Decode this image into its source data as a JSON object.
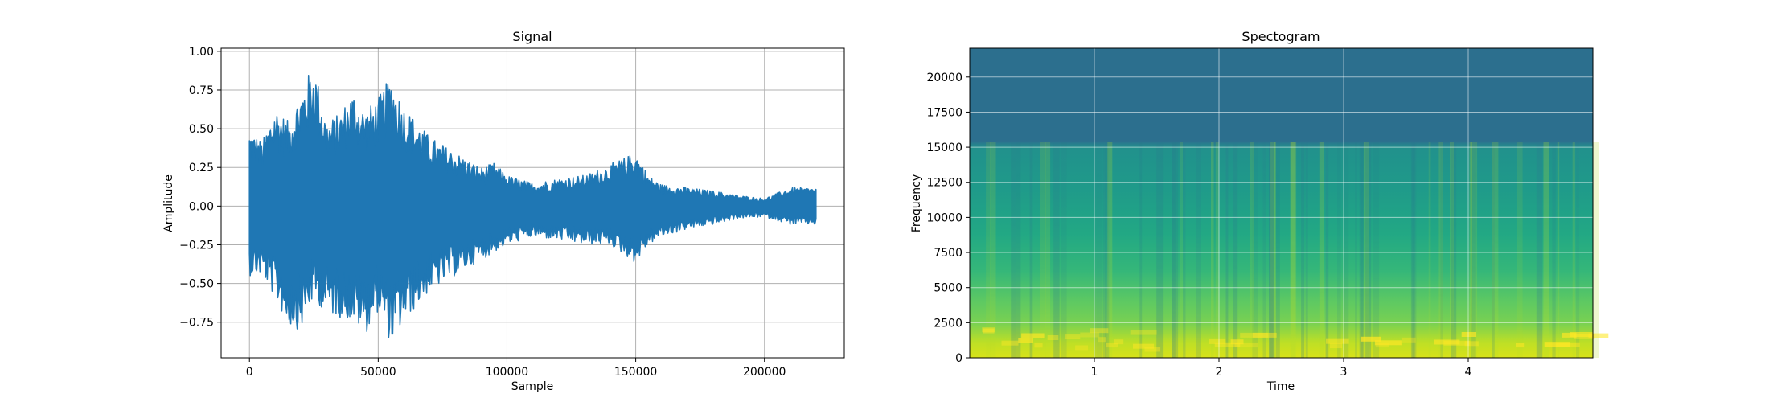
{
  "chart_data": [
    {
      "type": "line",
      "title": "Signal",
      "xlabel": "Sample",
      "ylabel": "Amplitude",
      "xlim": [
        -11000,
        231000
      ],
      "ylim": [
        -0.98,
        1.02
      ],
      "xticks": [
        0,
        50000,
        100000,
        150000,
        200000
      ],
      "xtick_labels": [
        "0",
        "50000",
        "100000",
        "150000",
        "200000"
      ],
      "yticks": [
        -0.75,
        -0.5,
        -0.25,
        0.0,
        0.25,
        0.5,
        0.75,
        1.0
      ],
      "ytick_labels": [
        "−0.75",
        "−0.50",
        "−0.25",
        "0.00",
        "0.25",
        "0.50",
        "0.75",
        "1.00"
      ],
      "grid": true,
      "line_color": "#1f77b4",
      "envelope": {
        "x": [
          0,
          5000,
          10000,
          15000,
          20000,
          25000,
          30000,
          35000,
          40000,
          45000,
          50000,
          55000,
          60000,
          65000,
          70000,
          75000,
          80000,
          85000,
          90000,
          95000,
          100000,
          110000,
          120000,
          130000,
          140000,
          150000,
          155000,
          160000,
          170000,
          180000,
          190000,
          200000,
          210000,
          220000
        ],
        "upper": [
          0.5,
          0.42,
          0.65,
          0.55,
          0.75,
          0.93,
          0.55,
          0.6,
          0.75,
          0.62,
          0.7,
          0.85,
          0.65,
          0.55,
          0.45,
          0.4,
          0.35,
          0.3,
          0.25,
          0.28,
          0.2,
          0.15,
          0.18,
          0.2,
          0.27,
          0.35,
          0.2,
          0.14,
          0.12,
          0.1,
          0.07,
          0.05,
          0.12,
          0.12
        ],
        "lower": [
          -0.45,
          -0.45,
          -0.6,
          -0.78,
          -0.8,
          -0.6,
          -0.7,
          -0.72,
          -0.75,
          -0.83,
          -0.68,
          -0.9,
          -0.75,
          -0.65,
          -0.55,
          -0.5,
          -0.45,
          -0.4,
          -0.35,
          -0.3,
          -0.25,
          -0.2,
          -0.22,
          -0.25,
          -0.25,
          -0.37,
          -0.25,
          -0.2,
          -0.15,
          -0.12,
          -0.08,
          -0.07,
          -0.12,
          -0.12
        ]
      }
    },
    {
      "type": "heatmap",
      "title": "Spectogram",
      "xlabel": "Time",
      "ylabel": "Frequency",
      "xlim": [
        0,
        5
      ],
      "ylim": [
        0,
        22050
      ],
      "xticks": [
        1,
        2,
        3,
        4
      ],
      "xtick_labels": [
        "1",
        "2",
        "3",
        "4"
      ],
      "yticks": [
        0,
        2500,
        5000,
        7500,
        10000,
        12500,
        15000,
        17500,
        20000
      ],
      "ytick_labels": [
        "0",
        "2500",
        "5000",
        "7500",
        "10000",
        "12500",
        "15000",
        "17500",
        "20000"
      ],
      "grid": true,
      "colormap": "viridis",
      "band_cutoff_hz": 15400
    }
  ]
}
